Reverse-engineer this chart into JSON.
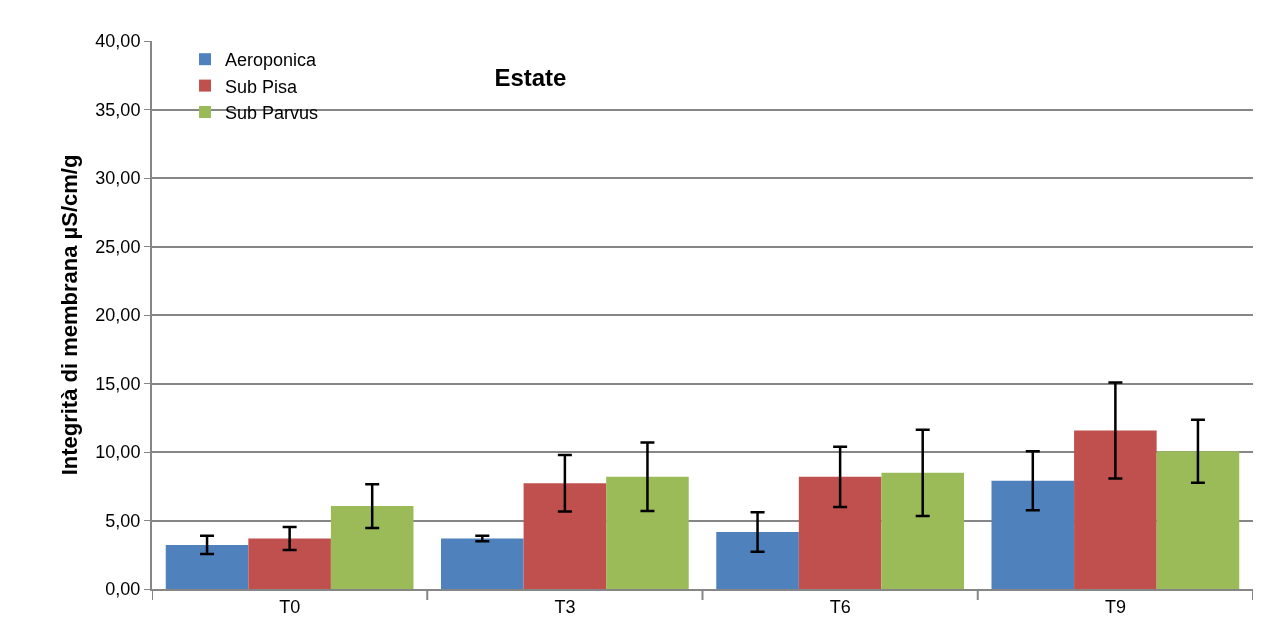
{
  "chart_data": {
    "type": "bar",
    "title": "Estate",
    "ylabel": "Integrità di membrana µS/cm/g",
    "categories": [
      "T0",
      "T3",
      "T6",
      "T9"
    ],
    "series": [
      {
        "name": "Aeroponica",
        "color": "#4f81bd",
        "values": [
          3.22,
          3.69,
          4.16,
          7.9
        ],
        "errors": [
          0.67,
          0.2,
          1.45,
          2.15
        ]
      },
      {
        "name": "Sub Pisa",
        "color": "#c0504d",
        "values": [
          3.69,
          7.72,
          8.19,
          11.57
        ],
        "errors": [
          0.84,
          2.07,
          2.2,
          3.5
        ]
      },
      {
        "name": "Sub Parvus",
        "color": "#9bbb59",
        "values": [
          6.05,
          8.19,
          8.48,
          10.05
        ],
        "errors": [
          1.6,
          2.5,
          3.15,
          2.3
        ]
      }
    ],
    "ylim": [
      0,
      40
    ],
    "yticks": [
      {
        "value": 0,
        "label": "0,00"
      },
      {
        "value": 5,
        "label": "5,00"
      },
      {
        "value": 10,
        "label": "10,00"
      },
      {
        "value": 15,
        "label": "15,00"
      },
      {
        "value": 20,
        "label": "20,00"
      },
      {
        "value": 25,
        "label": "25,00"
      },
      {
        "value": 30,
        "label": "30,00"
      },
      {
        "value": 35,
        "label": "35,00"
      },
      {
        "value": 40,
        "label": "40,00"
      }
    ],
    "grid": "y",
    "legend": "top left"
  }
}
